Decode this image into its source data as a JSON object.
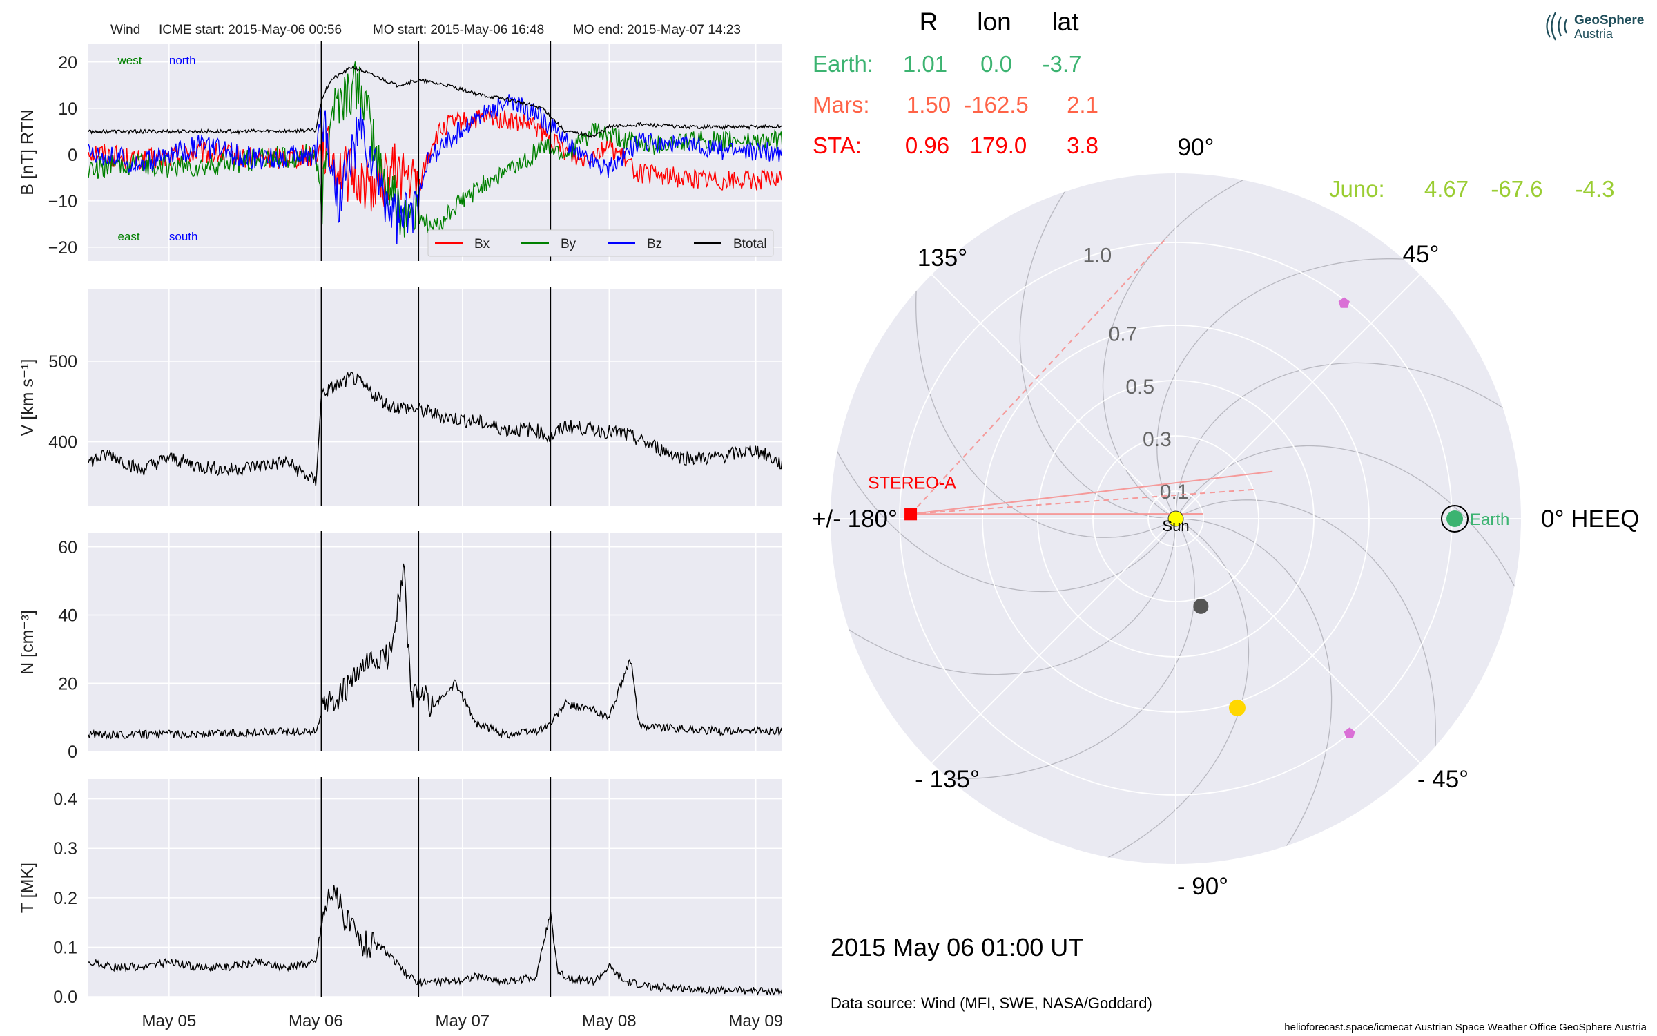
{
  "header": {
    "spacecraft": "Wind",
    "icme_start": "ICME start: 2015-May-06 00:56",
    "mo_start": "MO start: 2015-May-06 16:48",
    "mo_end": "MO end: 2015-May-07 14:23"
  },
  "logo": {
    "line1": "GeoSphere",
    "line2": "Austria"
  },
  "footer": {
    "date_label": "2015 May 06  01:00 UT",
    "data_source": "Data source: Wind (MFI, SWE, NASA/Goddard)",
    "credits": "helioforecast.space/icmecat   Austrian Space Weather Office   GeoSphere Austria"
  },
  "colors": {
    "panel_bg": "#eaeaf2",
    "grid": "#ffffff",
    "earth": "#3cb371",
    "mars": "#ff6347",
    "sta": "#ff0000",
    "juno": "#9acd32",
    "bx": "#ff0000",
    "by": "#008000",
    "bz": "#0000ff",
    "btotal": "#000000"
  },
  "positions_table": {
    "headers": [
      "R",
      "lon",
      "lat"
    ],
    "rows": [
      {
        "name": "Earth:",
        "r": "1.01",
        "lon": "0.0",
        "lat": "-3.7",
        "color": "#3cb371"
      },
      {
        "name": "Mars:",
        "r": "1.50",
        "lon": "-162.5",
        "lat": "2.1",
        "color": "#ff6347"
      },
      {
        "name": "STA:",
        "r": "0.96",
        "lon": "179.0",
        "lat": "3.8",
        "color": "#ff0000"
      }
    ],
    "juno": {
      "name": "Juno:",
      "r": "4.67",
      "lon": "-67.6",
      "lat": "-4.3",
      "color": "#9acd32"
    }
  },
  "chart_data": [
    {
      "type": "line",
      "id": "magnetic_field",
      "ylabel": "B [nT] RTN",
      "ylim": [
        -23,
        24
      ],
      "yticks": [
        "−20",
        "−10",
        "0",
        "10",
        "20"
      ],
      "ytick_values": [
        -20,
        -10,
        0,
        10,
        20
      ],
      "xlim_days": [
        4.45,
        9.18
      ],
      "annotations": [
        {
          "text": "west",
          "color": "#008000",
          "x": 4.65,
          "y": 19.5
        },
        {
          "text": "north",
          "color": "#0000ff",
          "x": 5.0,
          "y": 19.5
        },
        {
          "text": "east",
          "color": "#008000",
          "x": 4.65,
          "y": -18.5
        },
        {
          "text": "south",
          "color": "#0000ff",
          "x": 5.0,
          "y": -18.5
        }
      ],
      "legend": {
        "placement": "lower-right",
        "entries": [
          "Bx",
          "By",
          "Bz",
          "Btotal"
        ]
      },
      "series": [
        {
          "name": "Bx",
          "color": "#ff0000",
          "x": [
            4.45,
            4.8,
            5.2,
            5.6,
            6.0,
            6.04,
            6.2,
            6.4,
            6.55,
            6.7,
            6.8,
            6.9,
            7.2,
            7.5,
            7.6,
            7.8,
            8.0,
            8.2,
            8.5,
            8.8,
            9.18
          ],
          "y": [
            1.0,
            -1.5,
            0.5,
            -1.0,
            0.0,
            2.0,
            -4.0,
            -7.0,
            -3.0,
            -7.0,
            3.0,
            6.5,
            8.0,
            6.0,
            3.0,
            -1.0,
            2.0,
            -4.0,
            -5.0,
            -5.5,
            -5.5
          ]
        },
        {
          "name": "By",
          "color": "#008000",
          "x": [
            4.45,
            4.8,
            5.2,
            5.6,
            6.0,
            6.04,
            6.1,
            6.3,
            6.45,
            6.6,
            6.7,
            6.8,
            7.0,
            7.2,
            7.4,
            7.55,
            7.7,
            7.9,
            8.1,
            8.3,
            8.6,
            9.18
          ],
          "y": [
            -3.0,
            -2.0,
            -3.0,
            -1.0,
            0.0,
            -12.0,
            10.0,
            15.0,
            -5.0,
            -13.0,
            -13.0,
            -16.0,
            -10.0,
            -5.0,
            -2.0,
            2.0,
            0.0,
            5.0,
            3.0,
            2.0,
            3.0,
            3.0
          ]
        },
        {
          "name": "Bz",
          "color": "#0000ff",
          "x": [
            4.45,
            4.8,
            5.2,
            5.6,
            6.0,
            6.04,
            6.15,
            6.3,
            6.45,
            6.55,
            6.65,
            6.75,
            6.9,
            7.1,
            7.3,
            7.5,
            7.6,
            7.8,
            8.0,
            8.2,
            8.5,
            8.8,
            9.18
          ],
          "y": [
            1.0,
            -2.0,
            2.0,
            -1.0,
            0.0,
            10.0,
            -10.0,
            5.0,
            -8.0,
            -14.0,
            -14.0,
            -2.0,
            3.0,
            8.0,
            11.5,
            9.0,
            6.0,
            0.0,
            -3.0,
            3.0,
            2.0,
            1.0,
            0.5
          ]
        },
        {
          "name": "Btotal",
          "color": "#000000",
          "x": [
            4.45,
            5.0,
            5.5,
            6.0,
            6.04,
            6.1,
            6.25,
            6.4,
            6.55,
            6.7,
            6.9,
            7.1,
            7.3,
            7.55,
            7.7,
            7.9,
            8.0,
            8.2,
            8.5,
            8.8,
            9.18
          ],
          "y": [
            5.0,
            5.0,
            5.0,
            5.2,
            12.0,
            16.0,
            19.0,
            17.0,
            15.0,
            16.0,
            15.0,
            13.0,
            12.0,
            10.0,
            5.0,
            4.0,
            6.0,
            6.5,
            6.0,
            6.0,
            6.0
          ]
        }
      ]
    },
    {
      "type": "line",
      "id": "speed",
      "ylabel": "V [km s⁻¹]",
      "ylim": [
        320,
        590
      ],
      "yticks": [
        "400",
        "500"
      ],
      "ytick_values": [
        400,
        500
      ],
      "xlim_days": [
        4.45,
        9.18
      ],
      "series": [
        {
          "name": "V",
          "color": "#000000",
          "x": [
            4.45,
            4.6,
            4.8,
            5.0,
            5.2,
            5.4,
            5.6,
            5.8,
            6.0,
            6.04,
            6.15,
            6.25,
            6.35,
            6.5,
            6.7,
            6.9,
            7.1,
            7.3,
            7.5,
            7.6,
            7.7,
            7.9,
            8.1,
            8.3,
            8.5,
            8.7,
            8.85,
            9.0,
            9.18
          ],
          "y": [
            375,
            385,
            365,
            380,
            370,
            365,
            370,
            375,
            350,
            460,
            470,
            480,
            465,
            445,
            440,
            430,
            425,
            415,
            415,
            405,
            420,
            415,
            410,
            395,
            380,
            380,
            385,
            390,
            372
          ]
        }
      ]
    },
    {
      "type": "line",
      "id": "density",
      "ylabel": "N [cm⁻³]",
      "ylim": [
        0,
        64
      ],
      "yticks": [
        "0",
        "20",
        "40",
        "60"
      ],
      "ytick_values": [
        0,
        20,
        40,
        60
      ],
      "xlim_days": [
        4.45,
        9.18
      ],
      "series": [
        {
          "name": "N",
          "color": "#000000",
          "x": [
            4.45,
            5.0,
            5.5,
            6.0,
            6.04,
            6.2,
            6.35,
            6.5,
            6.6,
            6.65,
            6.7,
            6.8,
            6.95,
            7.1,
            7.3,
            7.5,
            7.6,
            7.7,
            7.9,
            8.0,
            8.1,
            8.15,
            8.2,
            8.4,
            8.7,
            9.18
          ],
          "y": [
            5,
            5,
            5.5,
            6,
            12,
            18,
            25,
            28,
            54,
            15,
            18,
            13,
            20,
            8,
            5,
            6,
            8,
            14,
            12,
            10,
            22,
            27,
            8,
            7,
            6,
            6
          ]
        }
      ]
    },
    {
      "type": "line",
      "id": "temperature",
      "ylabel": "T [MK]",
      "ylim": [
        0,
        0.44
      ],
      "yticks": [
        "0.0",
        "0.1",
        "0.2",
        "0.3",
        "0.4"
      ],
      "ytick_values": [
        0.0,
        0.1,
        0.2,
        0.3,
        0.4
      ],
      "xlim_days": [
        4.45,
        9.18
      ],
      "xticks": [
        "May 05",
        "May 06",
        "May 07",
        "May 08",
        "May 09"
      ],
      "xtick_values": [
        5,
        6,
        7,
        8,
        9
      ],
      "series": [
        {
          "name": "T",
          "color": "#000000",
          "x": [
            4.45,
            4.6,
            4.8,
            5.0,
            5.2,
            5.4,
            5.6,
            5.8,
            6.0,
            6.04,
            6.1,
            6.2,
            6.3,
            6.45,
            6.6,
            6.7,
            6.9,
            7.1,
            7.3,
            7.5,
            7.6,
            7.65,
            7.7,
            7.9,
            8.0,
            8.1,
            8.3,
            8.6,
            9.18
          ],
          "y": [
            0.07,
            0.06,
            0.06,
            0.07,
            0.06,
            0.06,
            0.07,
            0.06,
            0.07,
            0.15,
            0.22,
            0.16,
            0.11,
            0.1,
            0.05,
            0.03,
            0.03,
            0.04,
            0.03,
            0.04,
            0.17,
            0.05,
            0.04,
            0.03,
            0.06,
            0.03,
            0.02,
            0.015,
            0.01
          ]
        }
      ]
    },
    {
      "type": "scatter",
      "id": "polar_heeq",
      "r_max": 1.25,
      "r_labels": [
        "0.1",
        "0.3",
        "0.5",
        "0.7",
        "1.0"
      ],
      "r_label_values": [
        0.1,
        0.3,
        0.5,
        0.7,
        1.0
      ],
      "angle_labels": [
        {
          "text": "0° HEEQ",
          "deg": 0
        },
        {
          "text": "45°",
          "deg": 45
        },
        {
          "text": "90°",
          "deg": 90
        },
        {
          "text": "135°",
          "deg": 135
        },
        {
          "text": "+/- 180°",
          "deg": 180
        },
        {
          "text": "- 135°",
          "deg": -135
        },
        {
          "text": "- 90°",
          "deg": -90
        },
        {
          "text": "- 45°",
          "deg": -45
        }
      ],
      "bodies": [
        {
          "name": "Sun",
          "label": "Sun",
          "lon": 0,
          "r": 0,
          "color": "#ffff00",
          "marker": "circle"
        },
        {
          "name": "Earth",
          "label": "Earth",
          "lon": 0.0,
          "r": 1.01,
          "color": "#3cb371",
          "marker": "circle"
        },
        {
          "name": "STEREO-A",
          "label": "STEREO-A",
          "lon": 179.0,
          "r": 0.96,
          "color": "#ff0000",
          "marker": "square"
        },
        {
          "name": "Mercury",
          "lon": -74,
          "r": 0.33,
          "color": "#555555",
          "marker": "circle"
        },
        {
          "name": "Venus",
          "lon": -72,
          "r": 0.72,
          "color": "#ffd700",
          "marker": "circle"
        },
        {
          "name": "Parker Solar Probe",
          "lon": 52,
          "r": 0.99,
          "color": "#da70d6",
          "marker": "pentagon"
        },
        {
          "name": "BepiColombo",
          "lon": -51,
          "r": 1.0,
          "color": "#da70d6",
          "marker": "pentagon"
        }
      ],
      "sta_fov_lines": [
        {
          "to_r": 1.02,
          "to_lon": 91.7,
          "dashed": true
        },
        {
          "to_r": 0.39,
          "to_lon": 26,
          "dashed": false
        },
        {
          "to_r": 0.31,
          "to_lon": 20,
          "dashed": true
        },
        {
          "to_r": 0.1,
          "to_lon": 10,
          "dashed": false
        }
      ]
    }
  ]
}
